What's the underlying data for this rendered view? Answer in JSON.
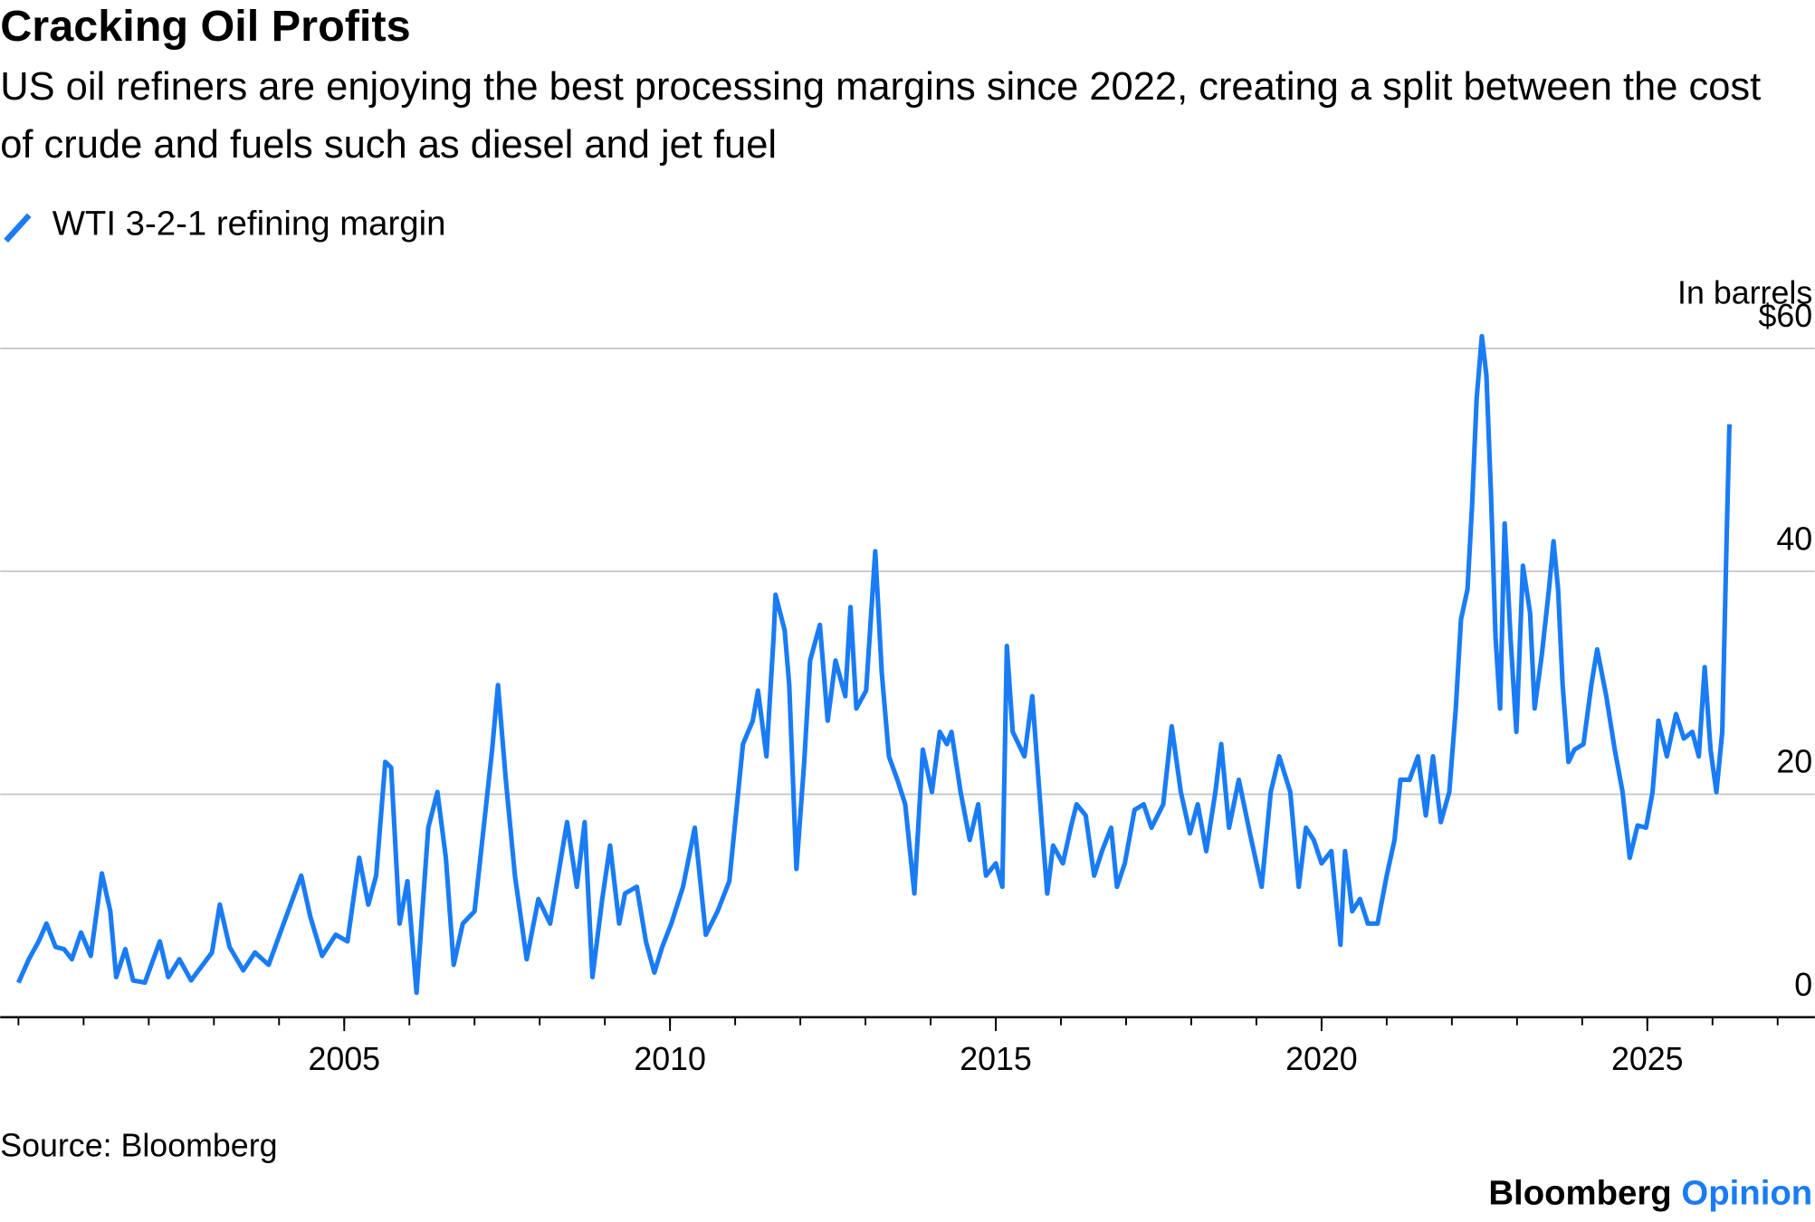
{
  "chart_data": {
    "type": "line",
    "title": "Cracking Oil Profits",
    "subtitle": "US oil refiners are enjoying the best processing margins since 2022, creating a split between the cost of crude and fuels such as diesel and jet fuel",
    "y_axis_label": "In barrels",
    "source": "Source: Bloomberg",
    "brand": "Bloomberg",
    "brand_suffix": "Opinion",
    "xlim": [
      1999.72,
      2027.57
    ],
    "xticks": [
      2005,
      2010,
      2015,
      2020,
      2025
    ],
    "xminor_ticks": [
      2000,
      2001,
      2002,
      2003,
      2004,
      2005,
      2006,
      2007,
      2008,
      2009,
      2010,
      2011,
      2012,
      2013,
      2014,
      2015,
      2016,
      2017,
      2018,
      2019,
      2020,
      2021,
      2022,
      2023,
      2024,
      2025,
      2026,
      2027
    ],
    "ylim": [
      0,
      65.1
    ],
    "yticks": [
      0,
      20,
      40,
      {
        "value": 60,
        "label": "$60"
      }
    ],
    "grid": true,
    "x": [
      2000.0,
      2000.16,
      2000.31,
      2000.43,
      2000.57,
      2000.7,
      2000.82,
      2000.96,
      2001.11,
      2001.28,
      2001.41,
      2001.5,
      2001.64,
      2001.76,
      2001.94,
      2002.17,
      2002.3,
      2002.47,
      2002.65,
      2002.83,
      2002.97,
      2003.09,
      2003.24,
      2003.45,
      2003.63,
      2003.84,
      2004.07,
      2004.34,
      2004.48,
      2004.66,
      2004.87,
      2005.05,
      2005.23,
      2005.37,
      2005.49,
      2005.63,
      2005.72,
      2005.85,
      2005.97,
      2006.11,
      2006.29,
      2006.43,
      2006.56,
      2006.68,
      2006.82,
      2007.0,
      2007.14,
      2007.27,
      2007.36,
      2007.48,
      2007.62,
      2007.8,
      2007.98,
      2008.16,
      2008.42,
      2008.57,
      2008.69,
      2008.81,
      2008.96,
      2009.08,
      2009.22,
      2009.31,
      2009.49,
      2009.63,
      2009.76,
      2009.88,
      2010.02,
      2010.2,
      2010.38,
      2010.55,
      2010.73,
      2010.91,
      2011.12,
      2011.27,
      2011.35,
      2011.48,
      2011.59,
      2011.62,
      2011.76,
      2011.83,
      2011.94,
      2012.06,
      2012.15,
      2012.3,
      2012.42,
      2012.54,
      2012.69,
      2012.77,
      2012.86,
      2013.01,
      2013.15,
      2013.25,
      2013.36,
      2013.49,
      2013.61,
      2013.75,
      2013.88,
      2014.02,
      2014.14,
      2014.25,
      2014.32,
      2014.46,
      2014.6,
      2014.73,
      2014.85,
      2015.0,
      2015.1,
      2015.17,
      2015.26,
      2015.44,
      2015.56,
      2015.71,
      2015.79,
      2015.88,
      2016.03,
      2016.15,
      2016.24,
      2016.38,
      2016.51,
      2016.63,
      2016.77,
      2016.86,
      2016.98,
      2017.13,
      2017.27,
      2017.39,
      2017.57,
      2017.7,
      2017.84,
      2017.98,
      2018.1,
      2018.23,
      2018.37,
      2018.46,
      2018.58,
      2018.73,
      2018.9,
      2019.08,
      2019.22,
      2019.35,
      2019.52,
      2019.65,
      2019.76,
      2019.88,
      2020.0,
      2020.15,
      2020.29,
      2020.36,
      2020.47,
      2020.59,
      2020.71,
      2020.86,
      2021.0,
      2021.12,
      2021.21,
      2021.35,
      2021.48,
      2021.6,
      2021.71,
      2021.83,
      2021.96,
      2022.06,
      2022.14,
      2022.24,
      2022.31,
      2022.38,
      2022.46,
      2022.53,
      2022.6,
      2022.67,
      2022.74,
      2022.81,
      2022.9,
      2022.99,
      2023.09,
      2023.2,
      2023.27,
      2023.38,
      2023.49,
      2023.56,
      2023.63,
      2023.7,
      2023.79,
      2023.88,
      2024.02,
      2024.14,
      2024.23,
      2024.37,
      2024.5,
      2024.62,
      2024.73,
      2024.85,
      2024.98,
      2025.08,
      2025.17,
      2025.3,
      2025.44,
      2025.56,
      2025.69,
      2025.79,
      2025.88,
      2025.97,
      2026.06,
      2026.15,
      2026.22,
      2026.26
    ],
    "series": [
      {
        "name": "WTI 3-2-1 refining margin",
        "color": "#1a7cf5",
        "values": [
          3.1,
          5.2,
          6.8,
          8.4,
          6.3,
          6.1,
          5.2,
          7.6,
          5.5,
          12.9,
          9.5,
          3.6,
          6.1,
          3.3,
          3.1,
          6.8,
          3.6,
          5.2,
          3.3,
          4.7,
          5.8,
          10.1,
          6.3,
          4.2,
          5.8,
          4.7,
          8.4,
          12.7,
          9.0,
          5.5,
          7.4,
          6.8,
          14.3,
          10.1,
          12.7,
          22.9,
          22.4,
          8.4,
          12.2,
          2.2,
          17.0,
          20.2,
          14.3,
          4.7,
          8.4,
          9.5,
          17.0,
          24.0,
          29.8,
          21.3,
          12.7,
          5.2,
          10.6,
          8.4,
          17.5,
          11.7,
          17.5,
          3.6,
          10.6,
          15.4,
          8.4,
          11.1,
          11.7,
          6.8,
          4.0,
          6.3,
          8.4,
          11.7,
          17.0,
          7.4,
          9.5,
          12.2,
          24.5,
          26.6,
          29.3,
          23.4,
          34.1,
          37.9,
          34.7,
          29.8,
          13.3,
          22.9,
          32.0,
          35.2,
          26.6,
          32.0,
          28.8,
          36.8,
          27.7,
          29.3,
          41.8,
          30.9,
          23.4,
          21.3,
          19.1,
          11.1,
          24.0,
          20.2,
          25.6,
          24.5,
          25.6,
          20.2,
          15.9,
          19.1,
          12.7,
          13.8,
          11.7,
          33.3,
          25.6,
          23.4,
          28.8,
          17.0,
          11.1,
          15.4,
          13.8,
          17.0,
          19.1,
          18.1,
          12.7,
          14.9,
          17.0,
          11.7,
          13.8,
          18.6,
          19.1,
          17.0,
          19.1,
          26.1,
          20.2,
          16.5,
          19.1,
          14.9,
          20.2,
          24.5,
          17.0,
          21.3,
          16.5,
          11.7,
          20.2,
          23.4,
          20.2,
          11.7,
          17.0,
          15.9,
          13.8,
          14.9,
          6.5,
          14.9,
          9.5,
          10.6,
          8.4,
          8.4,
          12.7,
          15.9,
          21.3,
          21.3,
          23.4,
          18.1,
          23.4,
          17.5,
          20.2,
          27.7,
          35.7,
          38.4,
          45.9,
          55.5,
          61.1,
          57.6,
          47.0,
          34.1,
          27.7,
          44.3,
          34.1,
          25.6,
          40.5,
          36.3,
          27.7,
          32.5,
          38.4,
          42.7,
          38.4,
          29.8,
          22.9,
          24.0,
          24.5,
          29.8,
          33.0,
          28.8,
          24.0,
          20.2,
          14.3,
          17.2,
          17.0,
          20.2,
          26.6,
          23.4,
          27.2,
          25.0,
          25.6,
          23.4,
          31.4,
          24.0,
          20.2,
          25.6,
          43.7,
          53.2
        ]
      }
    ]
  }
}
